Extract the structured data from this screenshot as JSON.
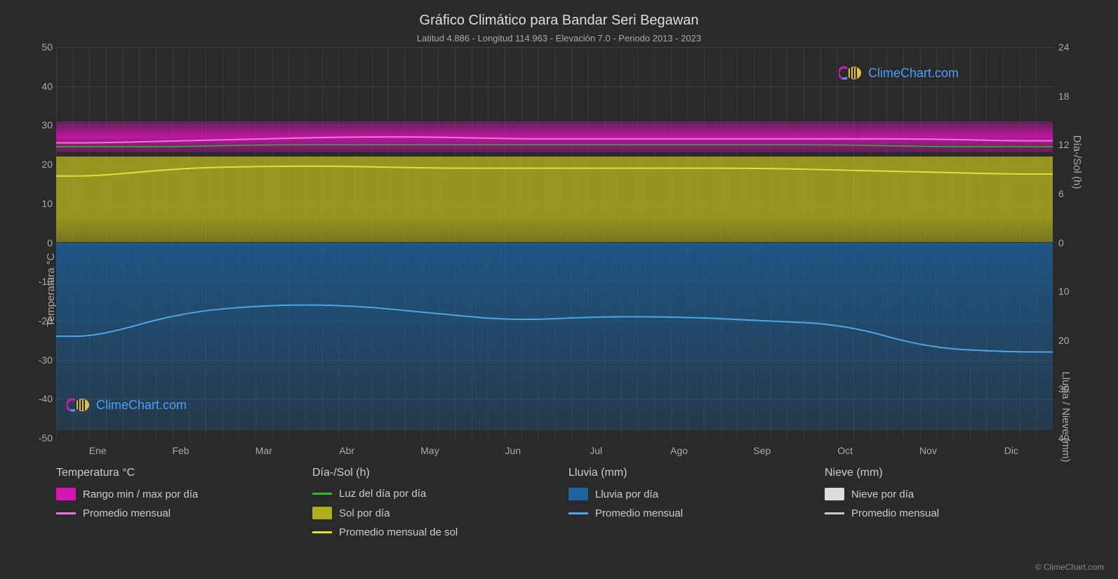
{
  "title": "Gráfico Climático para Bandar Seri Begawan",
  "subtitle": "Latitud 4.886 - Longitud 114.963 - Elevación 7.0 - Periodo 2013 - 2023",
  "axis_left_label": "Temperatura °C",
  "axis_right_top_label": "Día-/Sol (h)",
  "axis_right_bottom_label": "Lluvia / Nieve (mm)",
  "y_left": {
    "min": -50,
    "max": 50,
    "ticks": [
      50,
      40,
      30,
      20,
      10,
      0,
      -10,
      -20,
      -30,
      -40,
      -50
    ]
  },
  "y_right_top": {
    "min": 0,
    "max": 24,
    "ticks": [
      24,
      18,
      12,
      6,
      0
    ]
  },
  "y_right_bottom": {
    "min": 0,
    "max": 40,
    "ticks": [
      0,
      10,
      20,
      30,
      40
    ]
  },
  "months": [
    "Ene",
    "Feb",
    "Mar",
    "Abr",
    "May",
    "Jun",
    "Jul",
    "Ago",
    "Sep",
    "Oct",
    "Nov",
    "Dic"
  ],
  "bands": {
    "temp_range": {
      "top_c": 31,
      "bottom_c": 23,
      "color": "#d714b4"
    },
    "sun_range": {
      "top_c": 22,
      "bottom_c": 0,
      "color": "#afaf1e"
    },
    "rain_range": {
      "top_c": 0,
      "bottom_c": -48,
      "color": "#1e64a0"
    }
  },
  "lines": {
    "temp_avg": {
      "color": "#e878e0",
      "width": 2,
      "values": [
        25.5,
        26,
        26.5,
        27,
        27,
        26.5,
        26.5,
        26.5,
        26.5,
        26.5,
        26.5,
        26
      ]
    },
    "daylight": {
      "color": "#2eb82e",
      "width": 1.5,
      "values": [
        24.5,
        24.5,
        25,
        25,
        25,
        25,
        25,
        25,
        25,
        25,
        24.5,
        24.5
      ]
    },
    "sun_avg": {
      "color": "#e0e040",
      "width": 2,
      "values": [
        17,
        19,
        19.5,
        19.5,
        19,
        19,
        19,
        19,
        19,
        18.5,
        18,
        17.5
      ]
    },
    "rain_avg": {
      "color": "#4aa8e8",
      "width": 2,
      "values": [
        -24,
        -18,
        -16,
        -16,
        -18,
        -20,
        -19,
        -19,
        -20,
        -21,
        -27,
        -28
      ]
    }
  },
  "legend": {
    "groups": [
      {
        "title": "Temperatura °C",
        "items": [
          {
            "type": "swatch",
            "color": "#d714b4",
            "label": "Rango min / max por día"
          },
          {
            "type": "line",
            "color": "#e878e0",
            "label": "Promedio mensual"
          }
        ]
      },
      {
        "title": "Día-/Sol (h)",
        "items": [
          {
            "type": "line",
            "color": "#2eb82e",
            "label": "Luz del día por día"
          },
          {
            "type": "swatch",
            "color": "#afaf1e",
            "label": "Sol por día"
          },
          {
            "type": "line",
            "color": "#e0e040",
            "label": "Promedio mensual de sol"
          }
        ]
      },
      {
        "title": "Lluvia (mm)",
        "items": [
          {
            "type": "swatch",
            "color": "#1e64a0",
            "label": "Lluvia por día"
          },
          {
            "type": "line",
            "color": "#4aa8e8",
            "label": "Promedio mensual"
          }
        ]
      },
      {
        "title": "Nieve (mm)",
        "items": [
          {
            "type": "swatch",
            "color": "#dddddd",
            "label": "Nieve por día"
          },
          {
            "type": "line",
            "color": "#cccccc",
            "label": "Promedio mensual"
          }
        ]
      }
    ]
  },
  "watermark_text": "ClimeChart.com",
  "copyright": "© ClimeChart.com",
  "colors": {
    "background": "#2a2a2a",
    "grid": "#444444",
    "grid_minor": "#3a3a3a",
    "text": "#bbbbbb",
    "watermark_blue": "#4a9eff"
  }
}
